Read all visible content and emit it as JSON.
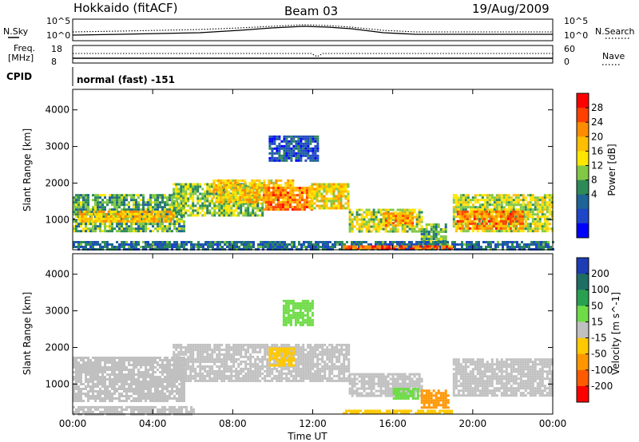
{
  "header": {
    "station": "Hokkaido (fitACF)",
    "beam": "Beam 03",
    "date": "19/Aug/2009",
    "mode": "normal (fast) -151"
  },
  "noise_panel": {
    "left_label": "N.Sky",
    "right_label": "N.Search",
    "left_ticks": [
      "10^5",
      "10^0"
    ],
    "right_ticks": [
      "10^5",
      "10^0"
    ]
  },
  "freq_panel": {
    "left_label_1": "Freq.",
    "left_label_2": "[MHz]",
    "right_label": "Nave",
    "left_ticks": [
      "18",
      "8"
    ],
    "right_ticks": [
      "60",
      "0"
    ],
    "cpid_label": "CPID"
  },
  "chart_data": [
    {
      "type": "heatmap",
      "quantity": "Power",
      "ylabel": "Slant Range [km]",
      "ylim": [
        180,
        4560
      ],
      "xlim": [
        0,
        24
      ],
      "y_ticks": [
        1000,
        2000,
        3000,
        4000
      ],
      "colorbar": {
        "label": "Power [dB]",
        "ticks": [
          "28",
          "24",
          "20",
          "16",
          "12",
          "8",
          "4"
        ],
        "colors": [
          "#ff0000",
          "#ff4000",
          "#ff8c00",
          "#ffbe00",
          "#ffe600",
          "#82c846",
          "#2e8b57",
          "#1e6496",
          "#1e46c8",
          "#0000ff"
        ]
      },
      "regions": [
        {
          "t0": 0.0,
          "t1": 5.6,
          "r0": 700,
          "r1": 1700,
          "level": 14
        },
        {
          "t0": 0.3,
          "t1": 5.0,
          "r0": 950,
          "r1": 1250,
          "level": 22
        },
        {
          "t0": 5.0,
          "t1": 9.5,
          "r0": 1100,
          "r1": 2000,
          "level": 16
        },
        {
          "t0": 7.0,
          "t1": 11.0,
          "r0": 1500,
          "r1": 2100,
          "level": 22
        },
        {
          "t0": 9.5,
          "t1": 12.0,
          "r0": 1300,
          "r1": 1900,
          "level": 26
        },
        {
          "t0": 11.8,
          "t1": 13.8,
          "r0": 1300,
          "r1": 2000,
          "level": 20
        },
        {
          "t0": 9.8,
          "t1": 12.2,
          "r0": 2600,
          "r1": 3300,
          "level": 8
        },
        {
          "t0": 13.8,
          "t1": 17.4,
          "r0": 700,
          "r1": 1300,
          "level": 18
        },
        {
          "t0": 15.5,
          "t1": 17.0,
          "r0": 850,
          "r1": 1200,
          "level": 24
        },
        {
          "t0": 17.4,
          "t1": 18.6,
          "r0": 300,
          "r1": 900,
          "level": 14
        },
        {
          "t0": 19.0,
          "t1": 24.0,
          "r0": 700,
          "r1": 1700,
          "level": 18
        },
        {
          "t0": 19.2,
          "t1": 22.5,
          "r0": 750,
          "r1": 1250,
          "level": 26
        },
        {
          "t0": 0.0,
          "t1": 24.0,
          "r0": 180,
          "r1": 420,
          "level": 10
        },
        {
          "t0": 13.5,
          "t1": 19.0,
          "r0": 180,
          "r1": 300,
          "level": 28
        }
      ]
    },
    {
      "type": "heatmap",
      "quantity": "Velocity",
      "ylabel": "Slant Range [km]",
      "xlabel": "Time UT",
      "ylim": [
        180,
        4560
      ],
      "xlim": [
        0,
        24
      ],
      "y_ticks": [
        1000,
        2000,
        3000,
        4000
      ],
      "x_ticks": [
        "00:00",
        "04:00",
        "08:00",
        "12:00",
        "16:00",
        "20:00",
        "00:00"
      ],
      "colorbar": {
        "label": "Velocity [m s^-1]",
        "ticks": [
          "200",
          "100",
          "50",
          "15",
          "-15",
          "-50",
          "-100",
          "-200"
        ],
        "colors": [
          "#1e3cb4",
          "#1e6e64",
          "#28a050",
          "#6edc46",
          "#c0c0c0",
          "#ffc800",
          "#ff9600",
          "#ff5a00",
          "#ff0000"
        ]
      },
      "regions": [
        {
          "t0": 0.0,
          "t1": 5.6,
          "r0": 550,
          "r1": 1750,
          "level": 0
        },
        {
          "t0": 5.0,
          "t1": 13.8,
          "r0": 1100,
          "r1": 2100,
          "level": 0
        },
        {
          "t0": 9.8,
          "t1": 11.0,
          "r0": 1500,
          "r1": 2000,
          "level": -40
        },
        {
          "t0": 10.5,
          "t1": 12.0,
          "r0": 2600,
          "r1": 3300,
          "level": 30
        },
        {
          "t0": 13.8,
          "t1": 17.4,
          "r0": 700,
          "r1": 1300,
          "level": 0
        },
        {
          "t0": 17.4,
          "t1": 18.8,
          "r0": 350,
          "r1": 850,
          "level": -60
        },
        {
          "t0": 16.0,
          "t1": 17.2,
          "r0": 600,
          "r1": 900,
          "level": 40
        },
        {
          "t0": 19.0,
          "t1": 24.0,
          "r0": 700,
          "r1": 1700,
          "level": 0
        },
        {
          "t0": 0.0,
          "t1": 6.0,
          "r0": 180,
          "r1": 400,
          "level": 0
        },
        {
          "t0": 13.5,
          "t1": 19.0,
          "r0": 180,
          "r1": 300,
          "level": -40
        }
      ]
    }
  ]
}
